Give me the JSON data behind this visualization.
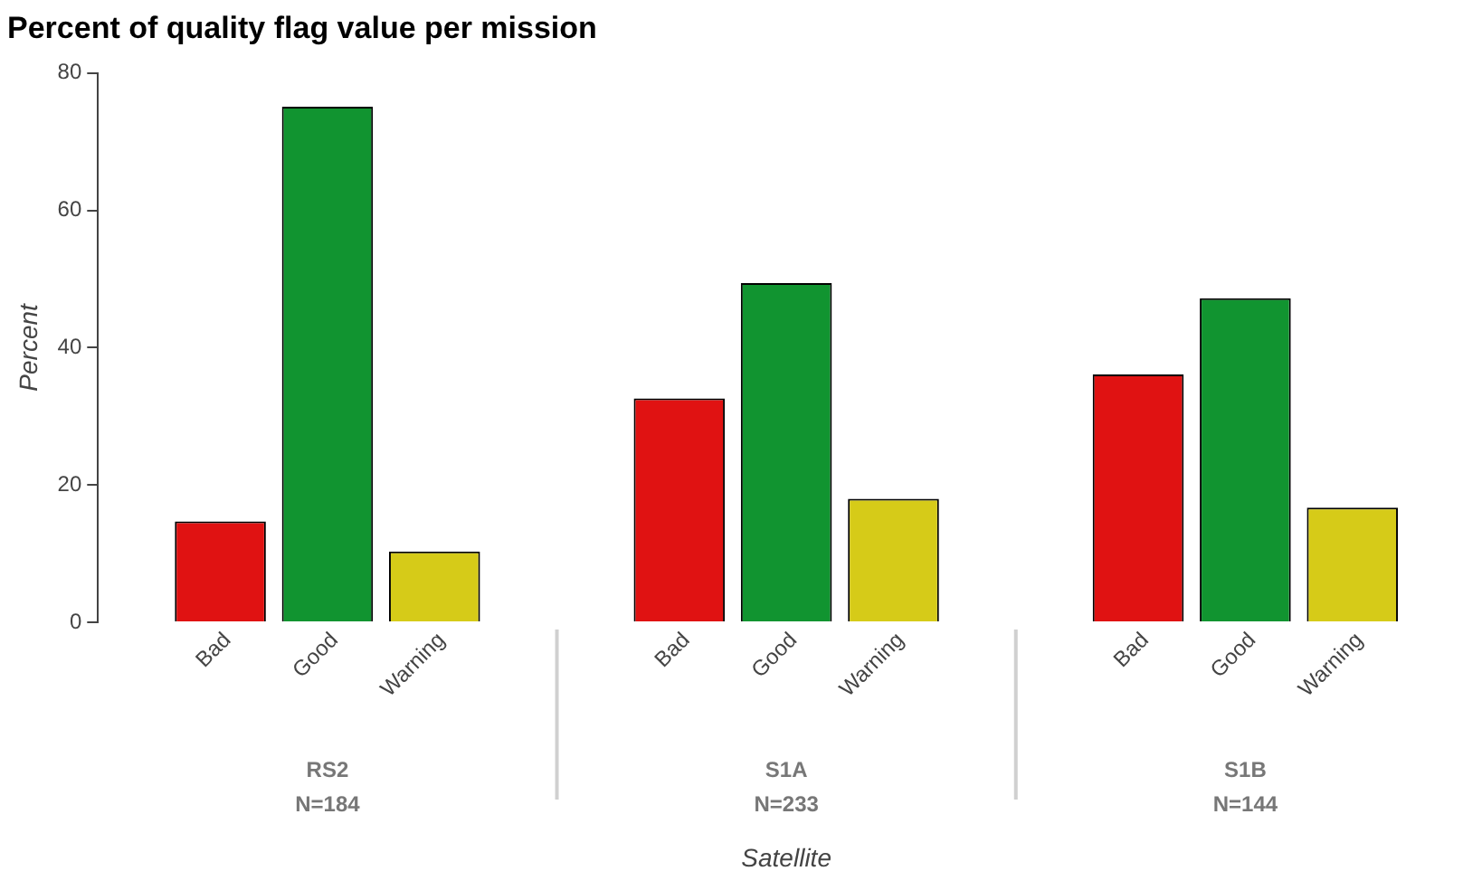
{
  "chart_data": {
    "type": "bar",
    "title": "Percent of quality flag value per mission",
    "xlabel": "Satellite",
    "ylabel": "Percent",
    "categories": [
      "RS2",
      "S1A",
      "S1B"
    ],
    "series": [
      {
        "name": "Bad",
        "color": "#e01212",
        "values": [
          14.7,
          32.6,
          36.1
        ]
      },
      {
        "name": "Good",
        "color": "#119430",
        "values": [
          75.1,
          49.4,
          47.2
        ]
      },
      {
        "name": "Warning",
        "color": "#d6cb18",
        "values": [
          10.3,
          18.0,
          16.7
        ]
      }
    ],
    "annotations": [
      "N=184",
      "N=233",
      "N=144"
    ],
    "ylim": [
      0,
      80
    ],
    "yticks": [
      0,
      20,
      40,
      60,
      80
    ],
    "grid": false,
    "legend": false
  }
}
